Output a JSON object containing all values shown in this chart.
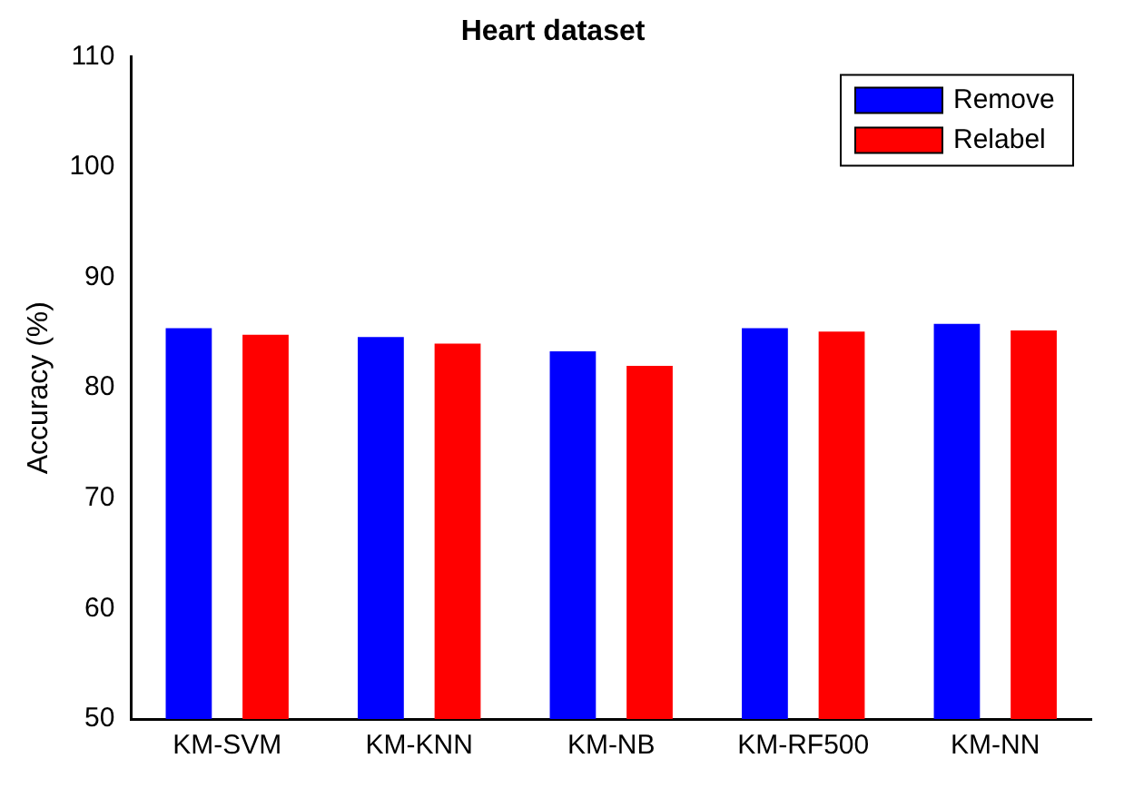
{
  "chart_data": {
    "type": "bar",
    "title": "Heart dataset",
    "ylabel": "Accuracy (%)",
    "categories": [
      "KM-SVM",
      "KM-KNN",
      "KM-NB",
      "KM-RF500",
      "KM-NN"
    ],
    "series": [
      {
        "name": "Remove",
        "color": "#0000ff",
        "values": [
          85.4,
          84.6,
          83.3,
          85.4,
          85.8
        ]
      },
      {
        "name": "Relabel",
        "color": "#ff0000",
        "values": [
          84.8,
          84.0,
          82.0,
          85.1,
          85.2
        ]
      }
    ],
    "ylim": [
      50,
      110
    ],
    "yticks": [
      50,
      60,
      70,
      80,
      90,
      100,
      110
    ],
    "grid": false,
    "legend": "top right"
  }
}
